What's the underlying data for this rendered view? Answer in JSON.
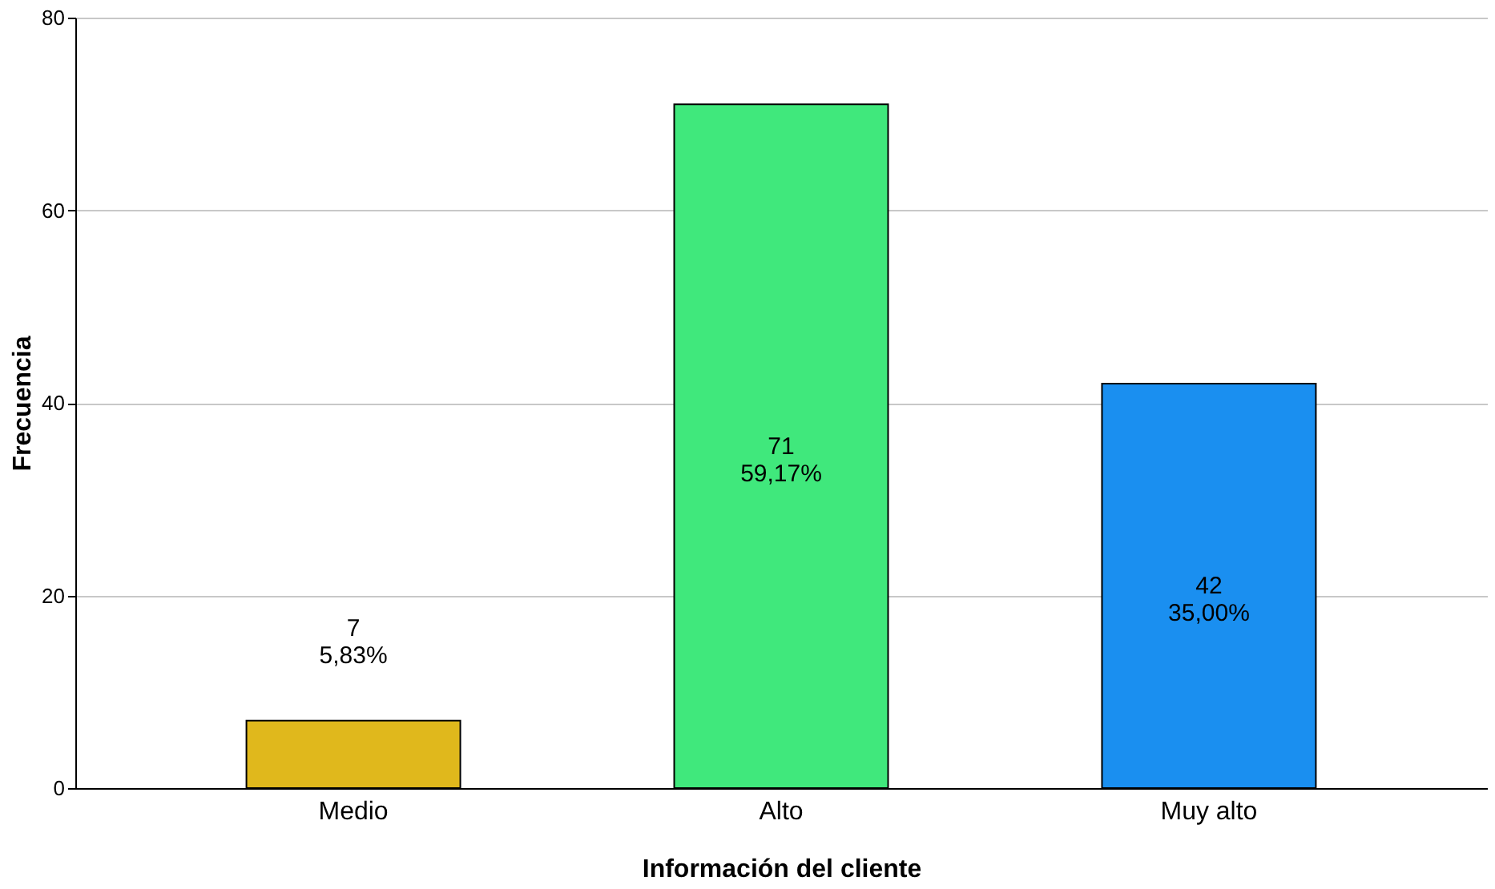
{
  "chart_data": {
    "type": "bar",
    "xlabel": "Información del cliente",
    "ylabel": "Frecuencia",
    "categories": [
      "Medio",
      "Alto",
      "Muy alto"
    ],
    "values": [
      7,
      71,
      42
    ],
    "colors": [
      "#e0b81c",
      "#40e87c",
      "#1a8ff0"
    ],
    "value_labels": [
      "7\n5,83%",
      "71\n59,17%",
      "42\n35,00%"
    ],
    "ylim": [
      0,
      80
    ],
    "yticks": [
      0,
      20,
      40,
      60,
      80
    ],
    "grid": "y"
  }
}
